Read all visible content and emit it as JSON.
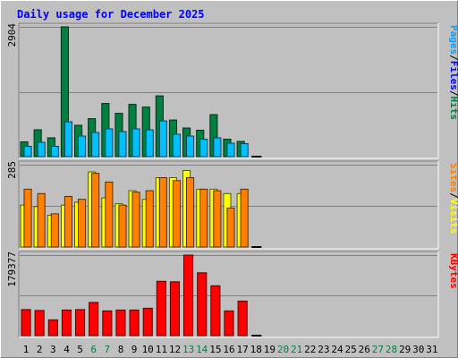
{
  "chart_data": {
    "type": "bar",
    "title": "Daily usage for December 2025",
    "categories": [
      "1",
      "2",
      "3",
      "4",
      "5",
      "6",
      "7",
      "8",
      "9",
      "10",
      "11",
      "12",
      "13",
      "14",
      "15",
      "16",
      "17",
      "18",
      "19",
      "20",
      "21",
      "22",
      "23",
      "24",
      "25",
      "26",
      "27",
      "28",
      "29",
      "30",
      "31"
    ],
    "weekend_days": [
      "6",
      "7",
      "13",
      "14",
      "20",
      "21",
      "27",
      "28"
    ],
    "panels": [
      {
        "id": "hits-files-pages",
        "ymax_label": "2904",
        "ymax": 2904,
        "legend": [
          "Pages",
          "/",
          "Files",
          "/",
          "Hits"
        ],
        "series": [
          {
            "name": "Hits",
            "color": "#008040",
            "values": [
              330,
              600,
              420,
              2904,
              700,
              850,
              1190,
              970,
              1170,
              1110,
              1360,
              820,
              640,
              590,
              940,
              390,
              340,
              0,
              0,
              0,
              0,
              0,
              0,
              0,
              0,
              0,
              0,
              0,
              0,
              0,
              0
            ]
          },
          {
            "name": "Files",
            "color": "#00c0ff",
            "values": [
              230,
              320,
              230,
              780,
              460,
              540,
              620,
              560,
              620,
              600,
              800,
              500,
              460,
              390,
              420,
              300,
              290,
              0,
              0,
              0,
              0,
              0,
              0,
              0,
              0,
              0,
              0,
              0,
              0,
              0,
              0
            ]
          },
          {
            "name": "Pages",
            "color": "#00a0ff",
            "values": [
              0,
              0,
              0,
              0,
              0,
              0,
              0,
              0,
              0,
              0,
              0,
              0,
              0,
              0,
              0,
              0,
              0,
              0,
              0,
              0,
              0,
              0,
              0,
              0,
              0,
              0,
              0,
              0,
              0,
              0,
              0
            ]
          }
        ]
      },
      {
        "id": "visits-sites",
        "ymax_label": "285",
        "ymax": 285,
        "legend": [
          "Sites",
          "/",
          "Visits"
        ],
        "series": [
          {
            "name": "Visits",
            "color": "#ffff00",
            "values": [
              145,
              140,
              110,
              145,
              155,
              260,
              170,
              150,
              195,
              165,
              240,
              240,
              265,
              200,
              200,
              185,
              185,
              0,
              0,
              0,
              0,
              0,
              0,
              0,
              0,
              0,
              0,
              0,
              0,
              0,
              0
            ]
          },
          {
            "name": "Sites",
            "color": "#ff8000",
            "values": [
              200,
              185,
              115,
              175,
              165,
              255,
              225,
              145,
              190,
              195,
              240,
              230,
              240,
              200,
              195,
              135,
              200,
              0,
              0,
              0,
              0,
              0,
              0,
              0,
              0,
              0,
              0,
              0,
              0,
              0,
              0
            ]
          }
        ]
      },
      {
        "id": "kbytes",
        "ymax_label": "179377",
        "ymax": 179377,
        "legend": [
          "KBytes"
        ],
        "series": [
          {
            "name": "KBytes",
            "color": "#ff0000",
            "values": [
              58000,
              56000,
              35000,
              57000,
              58000,
              74000,
              55000,
              57000,
              57000,
              61000,
              121000,
              120000,
              179377,
              140000,
              111000,
              55000,
              77000,
              0,
              0,
              0,
              0,
              0,
              0,
              0,
              0,
              0,
              0,
              0,
              0,
              0,
              0
            ]
          }
        ]
      }
    ]
  }
}
